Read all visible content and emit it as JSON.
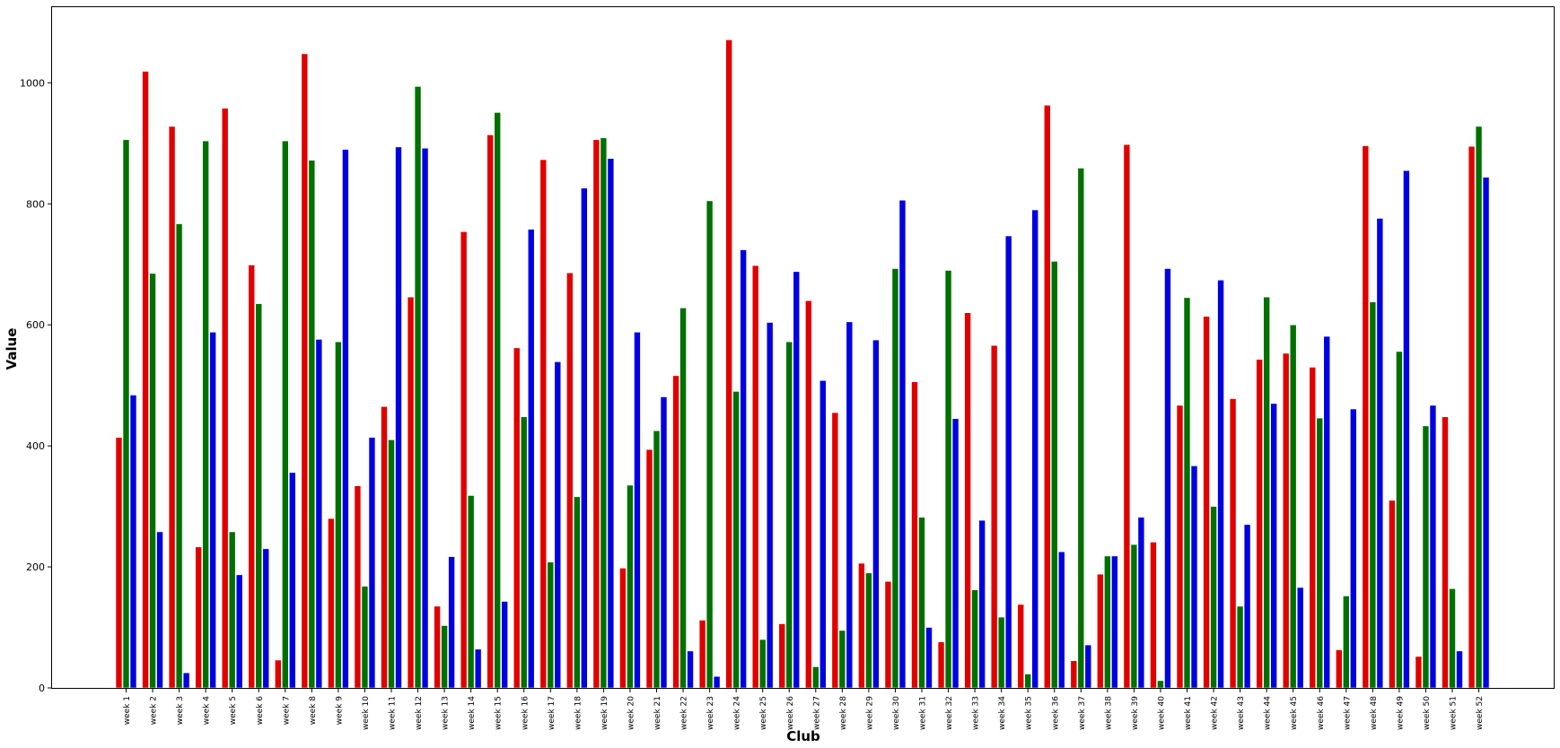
{
  "chart_data": {
    "type": "bar",
    "xlabel": "Club",
    "ylabel": "Value",
    "ylim": [
      0,
      1125
    ],
    "y_ticks": [
      0,
      200,
      400,
      600,
      800,
      1000
    ],
    "grid": false,
    "categories": [
      "week 1",
      "week 2",
      "week 3",
      "week 4",
      "week 5",
      "week 6",
      "week 7",
      "week 8",
      "week 9",
      "week 10",
      "week 11",
      "week 12",
      "week 13",
      "week 14",
      "week 15",
      "week 16",
      "week 17",
      "week 18",
      "week 19",
      "week 20",
      "week 21",
      "week 22",
      "week 23",
      "week 24",
      "week 25",
      "week 26",
      "week 27",
      "week 28",
      "week 29",
      "week 30",
      "week 31",
      "week 32",
      "week 33",
      "week 34",
      "week 35",
      "week 36",
      "week 37",
      "week 38",
      "week 39",
      "week 40",
      "week 41",
      "week 42",
      "week 43",
      "week 44",
      "week 45",
      "week 46",
      "week 47",
      "week 48",
      "week 49",
      "week 50",
      "week 51",
      "week 52"
    ],
    "series": [
      {
        "color": "#e00000",
        "values": [
          414,
          1019,
          928,
          233,
          958,
          699,
          46,
          1048,
          280,
          334,
          465,
          646,
          135,
          754,
          914,
          562,
          873,
          686,
          906,
          198,
          394,
          516,
          112,
          1071,
          698,
          106,
          640,
          455,
          206,
          176,
          506,
          76,
          620,
          566,
          138,
          963,
          45,
          188,
          898,
          241,
          467,
          614,
          478,
          543,
          553,
          530,
          63,
          896,
          310,
          52,
          448,
          895
        ]
      },
      {
        "color": "#007000",
        "values": [
          906,
          685,
          767,
          904,
          258,
          635,
          904,
          872,
          572,
          168,
          410,
          994,
          103,
          318,
          951,
          448,
          208,
          316,
          909,
          335,
          425,
          628,
          805,
          490,
          80,
          572,
          35,
          95,
          190,
          693,
          282,
          690,
          162,
          117,
          23,
          705,
          859,
          218,
          237,
          12,
          645,
          300,
          135,
          646,
          600,
          446,
          152,
          638,
          556,
          433,
          164,
          928
        ]
      },
      {
        "color": "#0000e0",
        "values": [
          484,
          258,
          25,
          588,
          187,
          230,
          356,
          576,
          890,
          414,
          894,
          892,
          217,
          64,
          143,
          758,
          539,
          826,
          875,
          588,
          481,
          61,
          19,
          724,
          604,
          688,
          508,
          605,
          575,
          806,
          100,
          445,
          277,
          747,
          790,
          225,
          71,
          218,
          282,
          693,
          367,
          674,
          270,
          470,
          166,
          581,
          461,
          776,
          855,
          467,
          61,
          844
        ]
      }
    ]
  }
}
